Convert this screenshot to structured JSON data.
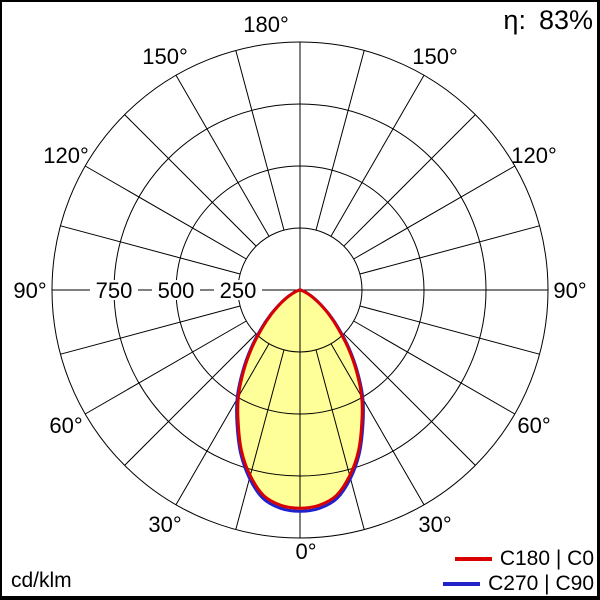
{
  "header": {
    "efficiency_label": "η:",
    "efficiency_value": "83%"
  },
  "footer": {
    "unit_label": "cd/klm"
  },
  "legend": {
    "items": [
      {
        "name": "C180 | C0",
        "color": "#d90000"
      },
      {
        "name": "C270 | C90",
        "color": "#2222cc"
      }
    ]
  },
  "chart_data": {
    "type": "line",
    "polar": true,
    "description": "Polar luminous intensity distribution of a luminaire (0° pointing down)",
    "unit": "cd/klm",
    "efficiency": "83%",
    "angle_labels": [
      "0°",
      "30°",
      "60°",
      "90°",
      "120°",
      "150°",
      "180°"
    ],
    "radial_ticks": [
      250,
      500,
      750
    ],
    "radial_max": 1000,
    "grid_step_deg": 15,
    "gamma_deg": [
      0,
      5,
      10,
      15,
      20,
      25,
      30,
      35,
      40,
      45,
      50,
      55,
      60,
      65,
      70,
      75,
      80,
      85,
      90
    ],
    "series": [
      {
        "name": "C180 | C0",
        "color": "#d90000",
        "values": [
          880,
          872,
          842,
          775,
          690,
          590,
          497,
          395,
          300,
          215,
          150,
          98,
          60,
          34,
          17,
          8,
          4,
          2,
          1
        ]
      },
      {
        "name": "C270 | C90",
        "color": "#2222cc",
        "values": [
          892,
          884,
          854,
          786,
          700,
          600,
          507,
          404,
          308,
          222,
          156,
          102,
          63,
          36,
          18,
          9,
          4,
          2,
          1
        ]
      }
    ],
    "fill_color": "#ffff99"
  }
}
